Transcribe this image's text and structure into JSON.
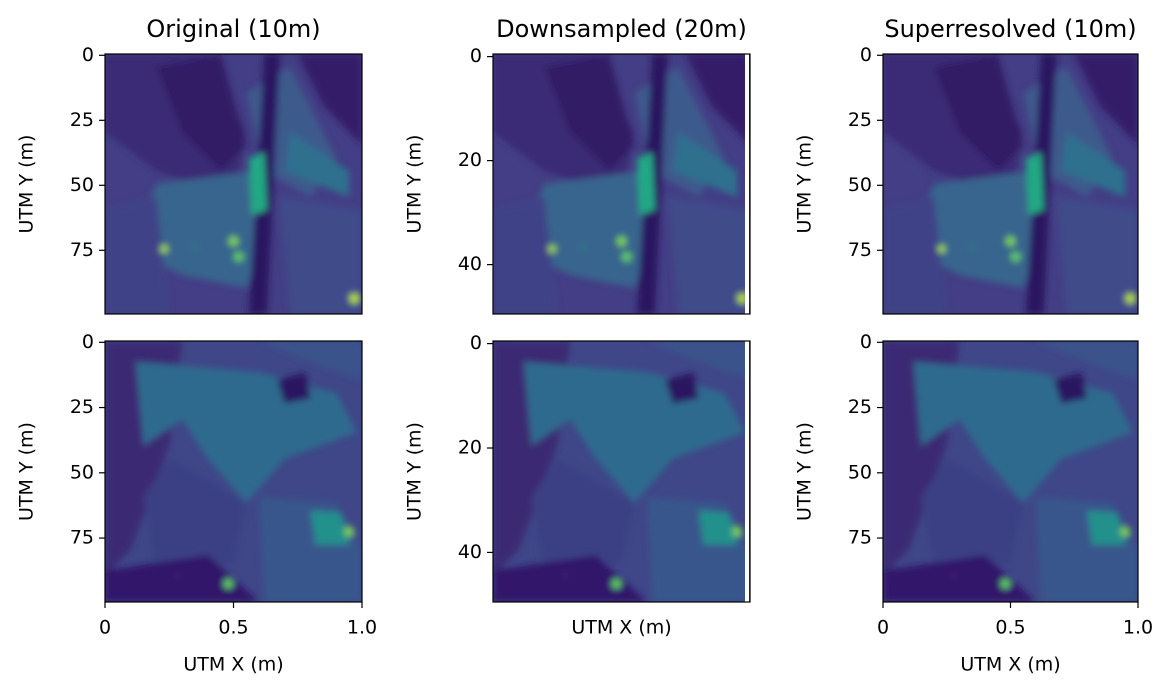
{
  "chart_data": [
    {
      "type": "image",
      "title": "Original (10m)",
      "ylabel": "UTM Y (m)",
      "ylim": [
        99.5,
        -0.5
      ],
      "yticks": [
        0,
        25,
        50,
        75
      ]
    },
    {
      "type": "image",
      "title": "Downsampled (20m)",
      "ylabel": "UTM Y (m)",
      "ylim": [
        49.5,
        -0.5
      ],
      "yticks": [
        0,
        20,
        40
      ]
    },
    {
      "type": "image",
      "title": "Superresolved (10m)",
      "ylabel": "UTM Y (m)",
      "ylim": [
        99.5,
        -0.5
      ],
      "yticks": [
        0,
        25,
        50,
        75
      ]
    },
    {
      "type": "image",
      "ylabel": "UTM Y (m)",
      "xlabel": "UTM X (m)",
      "ylim": [
        99.5,
        -0.5
      ],
      "yticks": [
        0,
        25,
        50,
        75
      ],
      "xlim": [
        0,
        1
      ],
      "xticks": [
        0,
        0.5,
        {
          "value": 1,
          "label": "1.0"
        }
      ]
    },
    {
      "type": "image",
      "ylabel": "UTM Y (m)",
      "xlabel": "UTM X (m)",
      "ylim": [
        49.5,
        -0.5
      ],
      "yticks": [
        0,
        20,
        40
      ]
    },
    {
      "type": "image",
      "ylabel": "UTM Y (m)",
      "xlabel": "UTM X (m)",
      "ylim": [
        99.5,
        -0.5
      ],
      "yticks": [
        0,
        25,
        50,
        75
      ],
      "xlim": [
        0,
        1
      ],
      "xticks": [
        0,
        0.5,
        {
          "value": 1,
          "label": "1.0"
        }
      ]
    }
  ]
}
